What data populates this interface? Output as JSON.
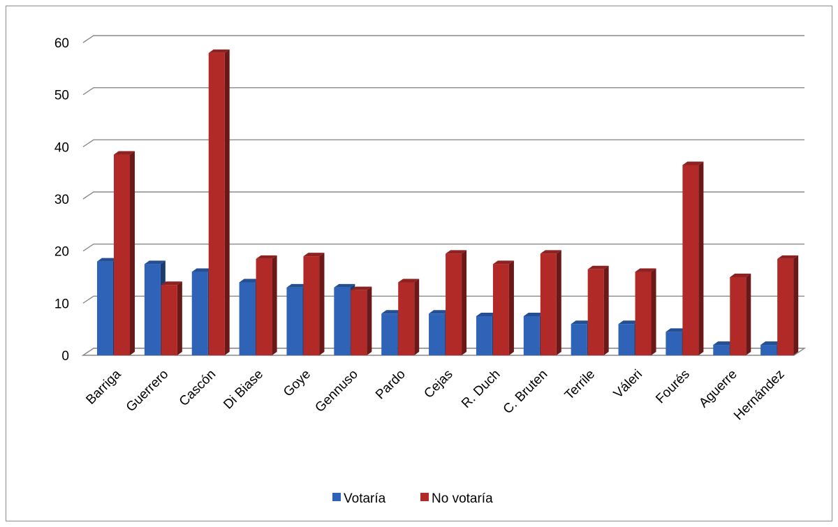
{
  "chart_data": {
    "type": "bar",
    "title": "",
    "xlabel": "",
    "ylabel": "",
    "ylim": [
      0,
      60
    ],
    "yticks": [
      0,
      10,
      20,
      30,
      40,
      50,
      60
    ],
    "grid": true,
    "legend_position": "bottom",
    "categories": [
      "Barriga",
      "Guerrero",
      "Cascón",
      "Di Biase",
      "Goye",
      "Gennuso",
      "Pardo",
      "Cejas",
      "R. Duch",
      "C. Bruten",
      "Terrile",
      "Váleri",
      "Fourés",
      "Aguerre",
      "Hernández"
    ],
    "series": [
      {
        "name": "Votaría",
        "color": "#2e63b8",
        "values": [
          18,
          17.5,
          16,
          14,
          13,
          13,
          8,
          8,
          7.5,
          7.5,
          6,
          6,
          4.5,
          2,
          2
        ]
      },
      {
        "name": "No votaría",
        "color": "#b22a28",
        "values": [
          38.5,
          13.5,
          58,
          18.5,
          19,
          12.5,
          14,
          19.5,
          17.5,
          19.5,
          16.5,
          16,
          36.5,
          15,
          18.5
        ]
      }
    ]
  }
}
